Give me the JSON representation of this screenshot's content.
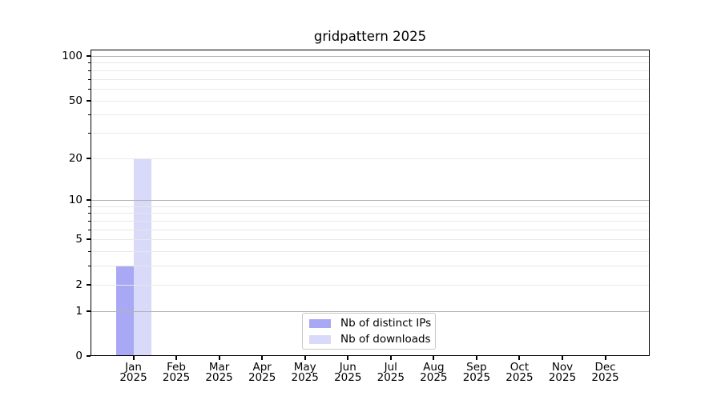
{
  "title": "gridpattern 2025",
  "chart_data": {
    "type": "bar",
    "title": "gridpattern 2025",
    "xlabel": "",
    "ylabel": "",
    "categories": [
      "Jan 2025",
      "Feb 2025",
      "Mar 2025",
      "Apr 2025",
      "May 2025",
      "Jun 2025",
      "Jul 2025",
      "Aug 2025",
      "Sep 2025",
      "Oct 2025",
      "Nov 2025",
      "Dec 2025"
    ],
    "series": [
      {
        "name": "Nb of distinct IPs",
        "color": "#a8a8f4",
        "values": [
          3,
          0,
          0,
          0,
          0,
          0,
          0,
          0,
          0,
          0,
          0,
          0
        ]
      },
      {
        "name": "Nb of downloads",
        "color": "#d9d9fa",
        "values": [
          20,
          0,
          0,
          0,
          0,
          0,
          0,
          0,
          0,
          0,
          0,
          0
        ]
      }
    ],
    "yscale": "log1p",
    "ylim": [
      0,
      110
    ],
    "yticks": [
      0,
      1,
      2,
      5,
      10,
      20,
      50,
      100
    ],
    "grid": true,
    "grid_major_values": [
      1,
      10,
      100
    ],
    "grid_minor_values": [
      2,
      3,
      4,
      5,
      6,
      7,
      8,
      9,
      20,
      30,
      40,
      50,
      60,
      70,
      80,
      90
    ],
    "ytick_minor_marks": [
      3,
      4,
      6,
      7,
      8,
      9,
      30,
      40,
      60,
      70,
      80,
      90
    ],
    "legend_position": "lower center"
  },
  "legend": {
    "items": [
      {
        "label": "Nb of distinct IPs",
        "color": "#a8a8f4"
      },
      {
        "label": "Nb of downloads",
        "color": "#d9d9fa"
      }
    ]
  },
  "colors": {
    "background": "#ffffff",
    "text": "#000000",
    "spine": "#000000",
    "grid_major": "#b2b2b2",
    "grid_minor": "#e8e8e8",
    "legend_border": "#c8c8c8",
    "bar_distinct_ips": "#a8a8f4",
    "bar_downloads": "#d9d9fa"
  }
}
